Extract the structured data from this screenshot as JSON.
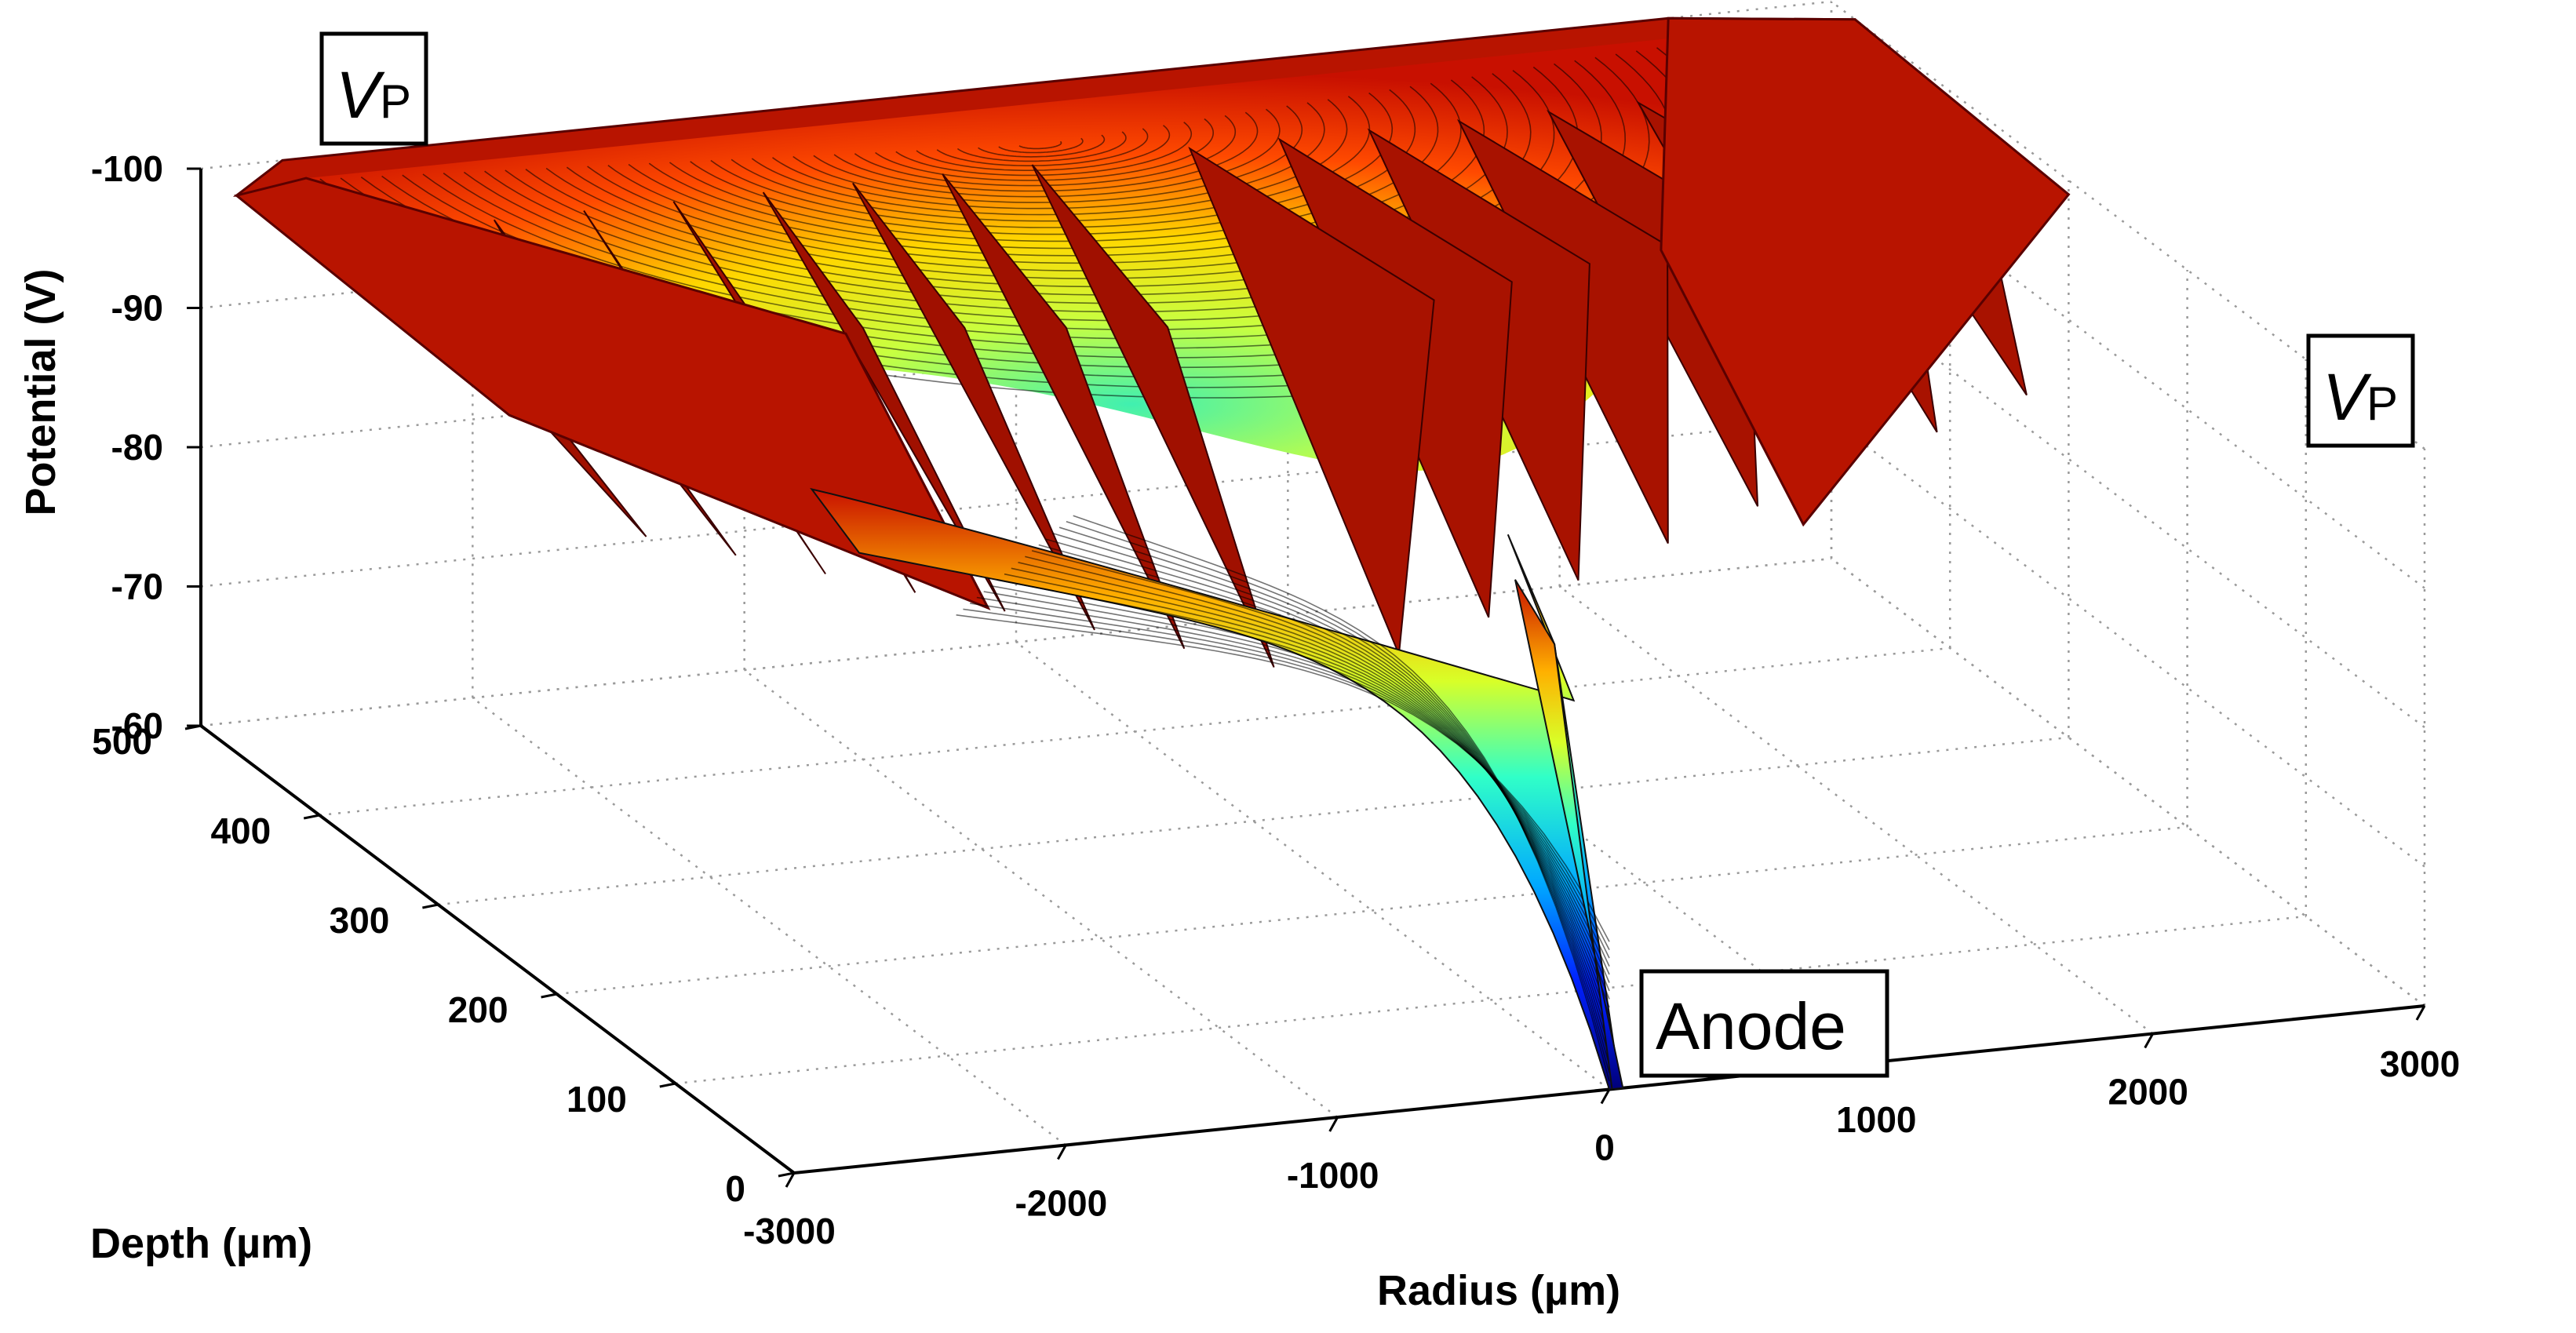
{
  "chart_data": {
    "type": "surface",
    "xlabel": "Radius (µm)",
    "ylabel": "Depth (µm)",
    "zlabel": "Potential (V)",
    "x_ticks": [
      -3000,
      -2000,
      -1000,
      0,
      1000,
      2000,
      3000
    ],
    "y_ticks": [
      0,
      100,
      200,
      300,
      400,
      500
    ],
    "z_ticks": [
      -60,
      -70,
      -80,
      -90,
      -100
    ],
    "xlim": [
      -3000,
      3000
    ],
    "ylim": [
      0,
      500
    ],
    "zlim": [
      -100,
      -60
    ],
    "z_direction": "reversed",
    "colormap": "jet",
    "grid": true,
    "annotations": {
      "vp_left": {
        "main": "V",
        "sub": "P"
      },
      "vp_right": {
        "main": "V",
        "sub": "P"
      },
      "anode": "Anode"
    },
    "anode_radius_um": 0,
    "anode_depth_um": 0,
    "strip_count_per_side": 8,
    "potential_at_depth_500": -100,
    "potential_at_anode": -60
  }
}
